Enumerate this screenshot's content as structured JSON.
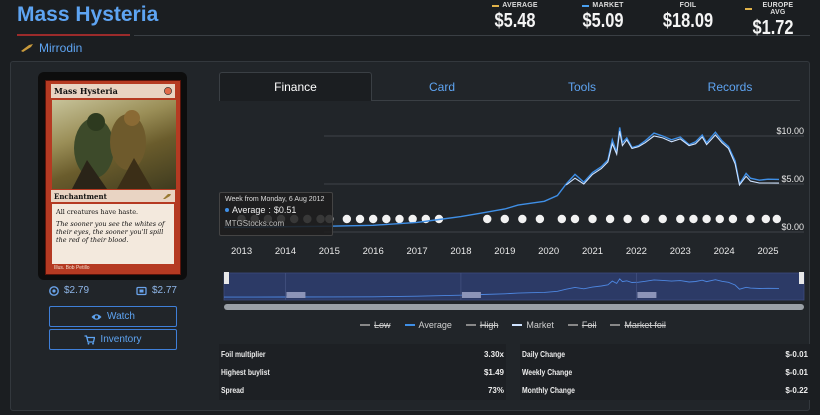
{
  "header": {
    "title": "Mass Hysteria",
    "set_name": "Mirrodin",
    "prices": [
      {
        "label": "AVERAGE",
        "value": "$5.48",
        "color": "#e0b24a"
      },
      {
        "label": "MARKET",
        "value": "$5.09",
        "color": "#4aa0f0"
      },
      {
        "label": "FOIL",
        "value": "$18.09",
        "color": ""
      },
      {
        "label": "EUROPE AVG",
        "value": "$1.72",
        "color": "#e0b24a"
      }
    ]
  },
  "card": {
    "name": "Mass Hysteria",
    "type_line": "Enchantment",
    "rules_text": "All creatures have haste.",
    "flavor_text": "The sooner you see the whites of their eyes, the sooner you'll spill the red of their blood.",
    "artist": "Illus. Bob Petillo",
    "price_1": "$2.79",
    "price_2": "$2.77",
    "watch_label": "Watch",
    "inventory_label": "Inventory"
  },
  "tabs": [
    {
      "label": "Finance",
      "active": true
    },
    {
      "label": "Card",
      "active": false
    },
    {
      "label": "Tools",
      "active": false
    },
    {
      "label": "Records",
      "active": false
    }
  ],
  "tooltip": {
    "header": "Week from Monday, 6 Aug 2012",
    "series": "Average",
    "value": "$0.51",
    "source": "MTGStocks.com"
  },
  "legend": [
    {
      "label": "Low",
      "active": false,
      "color": "#888888"
    },
    {
      "label": "Average",
      "active": true,
      "color": "#3f8fe6"
    },
    {
      "label": "High",
      "active": false,
      "color": "#888888"
    },
    {
      "label": "Market",
      "active": true,
      "color": "#cfe3ff"
    },
    {
      "label": "Foil",
      "active": false,
      "color": "#888888"
    },
    {
      "label": "Market foil",
      "active": false,
      "color": "#888888"
    }
  ],
  "stats_left": [
    {
      "label": "Foil multiplier",
      "value": "3.30x"
    },
    {
      "label": "Highest buylist",
      "value": "$1.49"
    },
    {
      "label": "Spread",
      "value": "73%"
    }
  ],
  "stats_right": [
    {
      "label": "Daily Change",
      "value": "$-0.01"
    },
    {
      "label": "Weekly Change",
      "value": "$-0.01"
    },
    {
      "label": "Monthly Change",
      "value": "$-0.22"
    }
  ],
  "chart_data": {
    "type": "line",
    "x_ticks": [
      "2013",
      "2014",
      "2015",
      "2016",
      "2017",
      "2018",
      "2019",
      "2020",
      "2021",
      "2022",
      "2023",
      "2024",
      "2025"
    ],
    "y_ticks": [
      "$0.00",
      "$5.00",
      "$10.00"
    ],
    "ylim": [
      0,
      12.5
    ],
    "xlim": [
      2012.6,
      2025.25
    ],
    "series": [
      {
        "name": "Average",
        "color": "#3f8fe6",
        "points": [
          [
            2012.6,
            0.5
          ],
          [
            2013.0,
            0.5
          ],
          [
            2014.0,
            0.55
          ],
          [
            2015.0,
            0.6
          ],
          [
            2016.0,
            0.7
          ],
          [
            2017.0,
            1.0
          ],
          [
            2017.5,
            1.3
          ],
          [
            2018.0,
            1.6
          ],
          [
            2018.5,
            2.0
          ],
          [
            2019.0,
            2.4
          ],
          [
            2019.3,
            2.8
          ],
          [
            2019.6,
            3.0
          ],
          [
            2019.9,
            3.2
          ],
          [
            2020.2,
            3.8
          ],
          [
            2020.4,
            5.0
          ],
          [
            2020.6,
            6.0
          ],
          [
            2020.8,
            5.2
          ],
          [
            2021.0,
            6.2
          ],
          [
            2021.2,
            6.8
          ],
          [
            2021.35,
            7.5
          ],
          [
            2021.45,
            9.6
          ],
          [
            2021.55,
            8.3
          ],
          [
            2021.62,
            10.9
          ],
          [
            2021.68,
            9.3
          ],
          [
            2021.78,
            9.8
          ],
          [
            2021.9,
            8.8
          ],
          [
            2022.05,
            9.0
          ],
          [
            2022.2,
            9.5
          ],
          [
            2022.4,
            10.3
          ],
          [
            2022.6,
            10.0
          ],
          [
            2022.8,
            9.6
          ],
          [
            2023.0,
            9.9
          ],
          [
            2023.2,
            9.1
          ],
          [
            2023.35,
            9.4
          ],
          [
            2023.5,
            10.1
          ],
          [
            2023.6,
            9.3
          ],
          [
            2023.8,
            10.4
          ],
          [
            2023.95,
            9.5
          ],
          [
            2024.1,
            8.9
          ],
          [
            2024.25,
            7.4
          ],
          [
            2024.35,
            5.0
          ],
          [
            2024.5,
            6.1
          ],
          [
            2024.6,
            5.6
          ],
          [
            2024.8,
            5.4
          ],
          [
            2025.0,
            5.5
          ],
          [
            2025.25,
            5.48
          ]
        ]
      },
      {
        "name": "Market",
        "color": "#cfe3ff",
        "points": [
          [
            2020.4,
            4.9
          ],
          [
            2020.6,
            5.6
          ],
          [
            2020.8,
            5.0
          ],
          [
            2021.0,
            6.0
          ],
          [
            2021.2,
            6.6
          ],
          [
            2021.35,
            7.3
          ],
          [
            2021.45,
            9.2
          ],
          [
            2021.55,
            8.1
          ],
          [
            2021.62,
            10.5
          ],
          [
            2021.68,
            9.0
          ],
          [
            2021.78,
            9.6
          ],
          [
            2021.9,
            8.7
          ],
          [
            2022.05,
            8.9
          ],
          [
            2022.2,
            9.3
          ],
          [
            2022.4,
            10.0
          ],
          [
            2022.6,
            9.8
          ],
          [
            2022.8,
            9.4
          ],
          [
            2023.0,
            9.7
          ],
          [
            2023.2,
            9.0
          ],
          [
            2023.35,
            9.2
          ],
          [
            2023.5,
            9.9
          ],
          [
            2023.6,
            9.1
          ],
          [
            2023.8,
            10.1
          ],
          [
            2023.95,
            9.3
          ],
          [
            2024.1,
            8.7
          ],
          [
            2024.25,
            7.1
          ],
          [
            2024.35,
            4.9
          ],
          [
            2024.5,
            5.8
          ],
          [
            2024.6,
            5.3
          ],
          [
            2024.8,
            5.1
          ],
          [
            2025.0,
            5.1
          ],
          [
            2025.25,
            5.09
          ]
        ]
      }
    ],
    "set_icon_years": [
      2013.0,
      2013.3,
      2013.6,
      2013.9,
      2014.2,
      2014.5,
      2014.8,
      2015.0,
      2015.4,
      2015.7,
      2016.0,
      2016.3,
      2016.6,
      2016.9,
      2017.2,
      2017.5,
      2018.6,
      2019.0,
      2019.4,
      2019.8,
      2020.3,
      2020.6,
      2021.0,
      2021.4,
      2021.8,
      2022.2,
      2022.6,
      2023.0,
      2023.3,
      2023.6,
      2023.9,
      2024.2,
      2024.6,
      2024.95,
      2025.2
    ]
  }
}
